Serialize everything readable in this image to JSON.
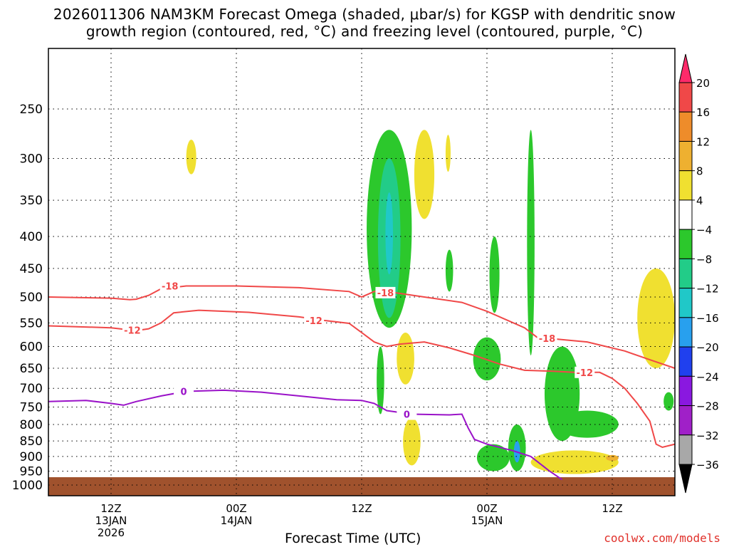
{
  "header": {
    "title_line1": "2026011306 NAM3KM Forecast Omega (shaded, μbar/s) for KGSP with dendritic snow",
    "title_line2": "growth region (contoured, red, °C) and freezing level (contoured, purple, °C)"
  },
  "footer": {
    "credit": "coolwx.com/models"
  },
  "chart_data": {
    "type": "heatmap",
    "title": "2026011306 NAM3KM Forecast Omega (shaded, μbar/s) for KGSP with dendritic snow growth region (contoured, red, °C) and freezing level (contoured, purple, °C)",
    "xlabel": "Forecast Time (UTC)",
    "ylabel": "",
    "y_scale": "log-pressure",
    "ylim_hPa": [
      1040,
      200
    ],
    "xlim_hours": [
      -5,
      45
    ],
    "grid": true,
    "x_ticks": [
      {
        "label": "12Z",
        "date": "13JAN",
        "year": "2026"
      },
      {
        "label": "00Z",
        "date": "14JAN",
        "year": ""
      },
      {
        "label": "12Z",
        "date": "",
        "year": ""
      },
      {
        "label": "00Z",
        "date": "15JAN",
        "year": ""
      },
      {
        "label": "12Z",
        "date": "",
        "year": ""
      }
    ],
    "x_tick_hours": [
      0,
      10,
      20,
      30,
      40
    ],
    "y_ticks": [
      "250",
      "300",
      "350",
      "400",
      "450",
      "500",
      "550",
      "600",
      "650",
      "700",
      "750",
      "800",
      "850",
      "900",
      "950",
      "1000"
    ],
    "y_tick_values": [
      250,
      300,
      350,
      400,
      450,
      500,
      550,
      600,
      650,
      700,
      750,
      800,
      850,
      900,
      950,
      1000
    ],
    "colorbar": {
      "labels": [
        "20",
        "16",
        "12",
        "8",
        "4",
        "−4",
        "−8",
        "−12",
        "−16",
        "−20",
        "−24",
        "−28",
        "−32",
        "−36"
      ],
      "colors": [
        "#ff2a6a",
        "#f04848",
        "#ee8c2a",
        "#eeb030",
        "#f0e030",
        "#ffffff",
        "#2cc82c",
        "#22cc88",
        "#20c8c8",
        "#28a0ee",
        "#2040ee",
        "#8a18e0",
        "#a020c8",
        "#a8a8a8",
        "#000000"
      ]
    },
    "contours": [
      {
        "name": "-18",
        "color": "#f04848",
        "points": [
          [
            -5,
            500
          ],
          [
            0,
            502
          ],
          [
            1.5,
            505
          ],
          [
            2,
            504
          ],
          [
            3,
            497
          ],
          [
            4,
            485
          ],
          [
            6,
            480
          ],
          [
            10,
            480
          ],
          [
            15,
            483
          ],
          [
            19,
            490
          ],
          [
            20,
            500
          ],
          [
            21,
            490
          ],
          [
            22,
            490
          ],
          [
            25,
            500
          ],
          [
            28,
            510
          ],
          [
            30,
            527
          ],
          [
            33,
            560
          ],
          [
            34,
            580
          ],
          [
            38,
            590
          ],
          [
            41,
            610
          ],
          [
            43,
            630
          ],
          [
            45,
            650
          ]
        ],
        "labels": [
          {
            "text": "-18",
            "h": 4.7,
            "p": 480
          },
          {
            "text": "-18",
            "h": 21.9,
            "p": 492
          },
          {
            "text": "-18",
            "h": 34.8,
            "p": 582
          }
        ]
      },
      {
        "name": "-12",
        "color": "#f04848",
        "points": [
          [
            -5,
            556
          ],
          [
            0,
            560
          ],
          [
            2,
            566
          ],
          [
            3,
            562
          ],
          [
            4,
            550
          ],
          [
            5,
            530
          ],
          [
            7,
            525
          ],
          [
            11,
            529
          ],
          [
            15,
            538
          ],
          [
            17,
            545
          ],
          [
            19,
            551
          ],
          [
            20,
            570
          ],
          [
            21,
            590
          ],
          [
            22,
            600
          ],
          [
            23,
            595
          ],
          [
            25,
            590
          ],
          [
            27,
            603
          ],
          [
            29,
            620
          ],
          [
            31,
            640
          ],
          [
            33,
            655
          ],
          [
            35,
            657
          ],
          [
            37,
            660
          ],
          [
            39,
            660
          ],
          [
            40,
            675
          ],
          [
            41,
            700
          ],
          [
            42,
            740
          ],
          [
            43,
            790
          ],
          [
            43.5,
            860
          ],
          [
            44,
            870
          ],
          [
            45,
            860
          ]
        ],
        "labels": [
          {
            "text": "-12",
            "h": 1.7,
            "p": 565
          },
          {
            "text": "-12",
            "h": 16.2,
            "p": 545
          },
          {
            "text": "-12",
            "h": 37.8,
            "p": 660
          }
        ]
      },
      {
        "name": "0",
        "color": "#9a12c8",
        "points": [
          [
            -5,
            735
          ],
          [
            -2,
            732
          ],
          [
            0,
            740
          ],
          [
            1,
            745
          ],
          [
            2,
            735
          ],
          [
            4,
            720
          ],
          [
            6,
            708
          ],
          [
            9,
            705
          ],
          [
            12,
            710
          ],
          [
            15,
            720
          ],
          [
            18,
            730
          ],
          [
            20,
            732
          ],
          [
            21,
            740
          ],
          [
            22,
            760
          ],
          [
            24,
            770
          ],
          [
            27,
            772
          ],
          [
            28,
            770
          ],
          [
            28.5,
            810
          ],
          [
            29,
            845
          ],
          [
            30,
            860
          ],
          [
            32,
            880
          ],
          [
            33.5,
            900
          ],
          [
            35,
            950
          ],
          [
            36,
            980
          ]
        ],
        "labels": [
          {
            "text": "0",
            "h": 5.8,
            "p": 708
          },
          {
            "text": "0",
            "h": 23.6,
            "p": 770
          }
        ]
      }
    ],
    "shaded_regions": [
      {
        "value": -8,
        "color": "#2cc82c",
        "center": [
          22.2,
          400
        ],
        "half_width": 1.8,
        "p_top": 270,
        "p_bottom": 560
      },
      {
        "value": -12,
        "color": "#22cc88",
        "center": [
          22.2,
          400
        ],
        "half_width": 0.9,
        "p_top": 300,
        "p_bottom": 540
      },
      {
        "value": -16,
        "color": "#20c8c8",
        "center": [
          22.2,
          390
        ],
        "half_width": 0.3,
        "p_top": 340,
        "p_bottom": 460
      },
      {
        "value": 4,
        "color": "#f0e030",
        "center": [
          25,
          320
        ],
        "half_width": 0.8,
        "p_top": 270,
        "p_bottom": 375
      },
      {
        "value": 4,
        "color": "#f0e030",
        "center": [
          6.4,
          300
        ],
        "half_width": 0.4,
        "p_top": 280,
        "p_bottom": 318
      },
      {
        "value": 4,
        "color": "#f0e030",
        "center": [
          26.9,
          290
        ],
        "half_width": 0.2,
        "p_top": 275,
        "p_bottom": 315
      },
      {
        "value": 4,
        "color": "#f0e030",
        "center": [
          23.5,
          625
        ],
        "half_width": 0.7,
        "p_top": 570,
        "p_bottom": 690
      },
      {
        "value": -8,
        "color": "#2cc82c",
        "center": [
          21.5,
          660
        ],
        "half_width": 0.3,
        "p_top": 600,
        "p_bottom": 770
      },
      {
        "value": -8,
        "color": "#2cc82c",
        "center": [
          27,
          455
        ],
        "half_width": 0.3,
        "p_top": 420,
        "p_bottom": 490
      },
      {
        "value": -8,
        "color": "#2cc82c",
        "center": [
          30.6,
          450
        ],
        "half_width": 0.4,
        "p_top": 400,
        "p_bottom": 530
      },
      {
        "value": -8,
        "color": "#2cc82c",
        "center": [
          33.5,
          400
        ],
        "half_width": 0.3,
        "p_top": 270,
        "p_bottom": 620
      },
      {
        "value": -8,
        "color": "#2cc82c",
        "center": [
          30,
          620
        ],
        "half_width": 1.1,
        "p_top": 580,
        "p_bottom": 680
      },
      {
        "value": -8,
        "color": "#2cc82c",
        "center": [
          36,
          720
        ],
        "half_width": 1.4,
        "p_top": 600,
        "p_bottom": 850
      },
      {
        "value": -8,
        "color": "#2cc82c",
        "center": [
          38,
          800
        ],
        "half_width": 2.5,
        "p_top": 760,
        "p_bottom": 840
      },
      {
        "value": -8,
        "color": "#2cc82c",
        "center": [
          30.5,
          900
        ],
        "half_width": 1.3,
        "p_top": 860,
        "p_bottom": 950
      },
      {
        "value": -8,
        "color": "#2cc82c",
        "center": [
          32.4,
          890
        ],
        "half_width": 0.7,
        "p_top": 800,
        "p_bottom": 950
      },
      {
        "value": -16,
        "color": "#28a0ee",
        "center": [
          32.4,
          890
        ],
        "half_width": 0.25,
        "p_top": 850,
        "p_bottom": 920
      },
      {
        "value": 4,
        "color": "#f0e030",
        "center": [
          37,
          910
        ],
        "half_width": 3.5,
        "p_top": 880,
        "p_bottom": 960
      },
      {
        "value": 8,
        "color": "#eeb030",
        "center": [
          40,
          905
        ],
        "half_width": 0.5,
        "p_top": 895,
        "p_bottom": 915
      },
      {
        "value": 4,
        "color": "#f0e030",
        "center": [
          43.5,
          560
        ],
        "half_width": 1.5,
        "p_top": 450,
        "p_bottom": 650
      },
      {
        "value": 4,
        "color": "#f0e030",
        "center": [
          24,
          840
        ],
        "half_width": 0.7,
        "p_top": 780,
        "p_bottom": 930
      },
      {
        "value": -8,
        "color": "#2cc82c",
        "center": [
          44.5,
          740
        ],
        "half_width": 0.4,
        "p_top": 710,
        "p_bottom": 760
      }
    ]
  }
}
